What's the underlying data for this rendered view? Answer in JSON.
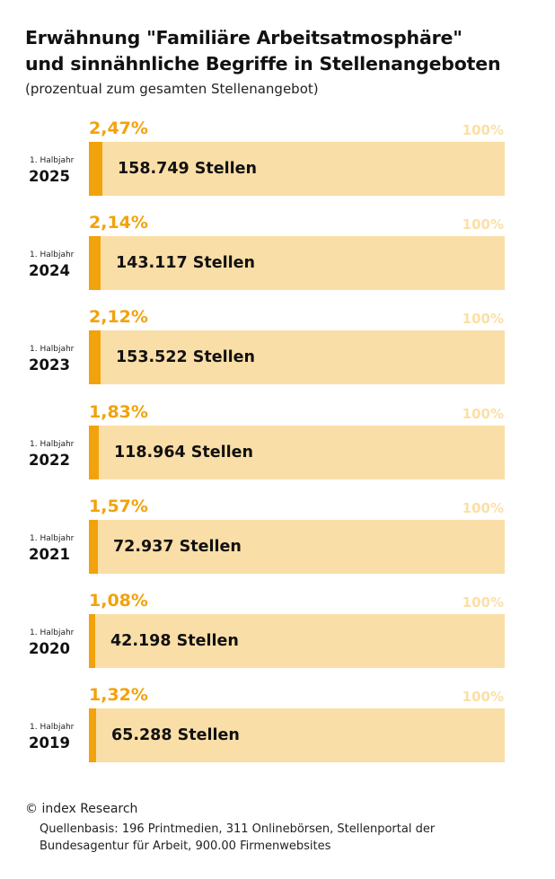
{
  "title_lines": [
    "Erwähnung \"Familiäre Arbeitsatmosphäre\"",
    "und sinnähnliche Begriffe in Stellenangeboten"
  ],
  "subtitle": "(prozentual zum gesamten Stellenangebot)",
  "footer": {
    "copyright": "© index Research",
    "source": "Quellenbasis: 196 Printmedien, 311 Onlinebörsen, Stellenportal der Bundesagentur für Arbeit, 900.00 Firmenwebsites"
  },
  "colors": {
    "accent": "#f2a20b",
    "bar_background": "#fadea7",
    "label_100": "#fbdfa5"
  },
  "chart_data": {
    "type": "bar",
    "orientation": "horizontal",
    "title": "Erwähnung \"Familiäre Arbeitsatmosphäre\" und sinnähnliche Begriffe in Stellenangeboten",
    "subtitle": "(prozentual zum gesamten Stellenangebot)",
    "max_label": "100%",
    "xlim": [
      0,
      100
    ],
    "rows": [
      {
        "period": "1. Halbjahr",
        "year": "2025",
        "value": 2.47,
        "value_label": "2,47%",
        "count_label": "158.749 Stellen"
      },
      {
        "period": "1. Halbjahr",
        "year": "2024",
        "value": 2.14,
        "value_label": "2,14%",
        "count_label": "143.117 Stellen"
      },
      {
        "period": "1. Halbjahr",
        "year": "2023",
        "value": 2.12,
        "value_label": "2,12%",
        "count_label": "153.522 Stellen"
      },
      {
        "period": "1. Halbjahr",
        "year": "2022",
        "value": 1.83,
        "value_label": "1,83%",
        "count_label": "118.964 Stellen"
      },
      {
        "period": "1. Halbjahr",
        "year": "2021",
        "value": 1.57,
        "value_label": "1,57%",
        "count_label": "72.937 Stellen"
      },
      {
        "period": "1. Halbjahr",
        "year": "2020",
        "value": 1.08,
        "value_label": "1,08%",
        "count_label": "42.198 Stellen"
      },
      {
        "period": "1. Halbjahr",
        "year": "2019",
        "value": 1.32,
        "value_label": "1,32%",
        "count_label": "65.288 Stellen"
      }
    ]
  }
}
